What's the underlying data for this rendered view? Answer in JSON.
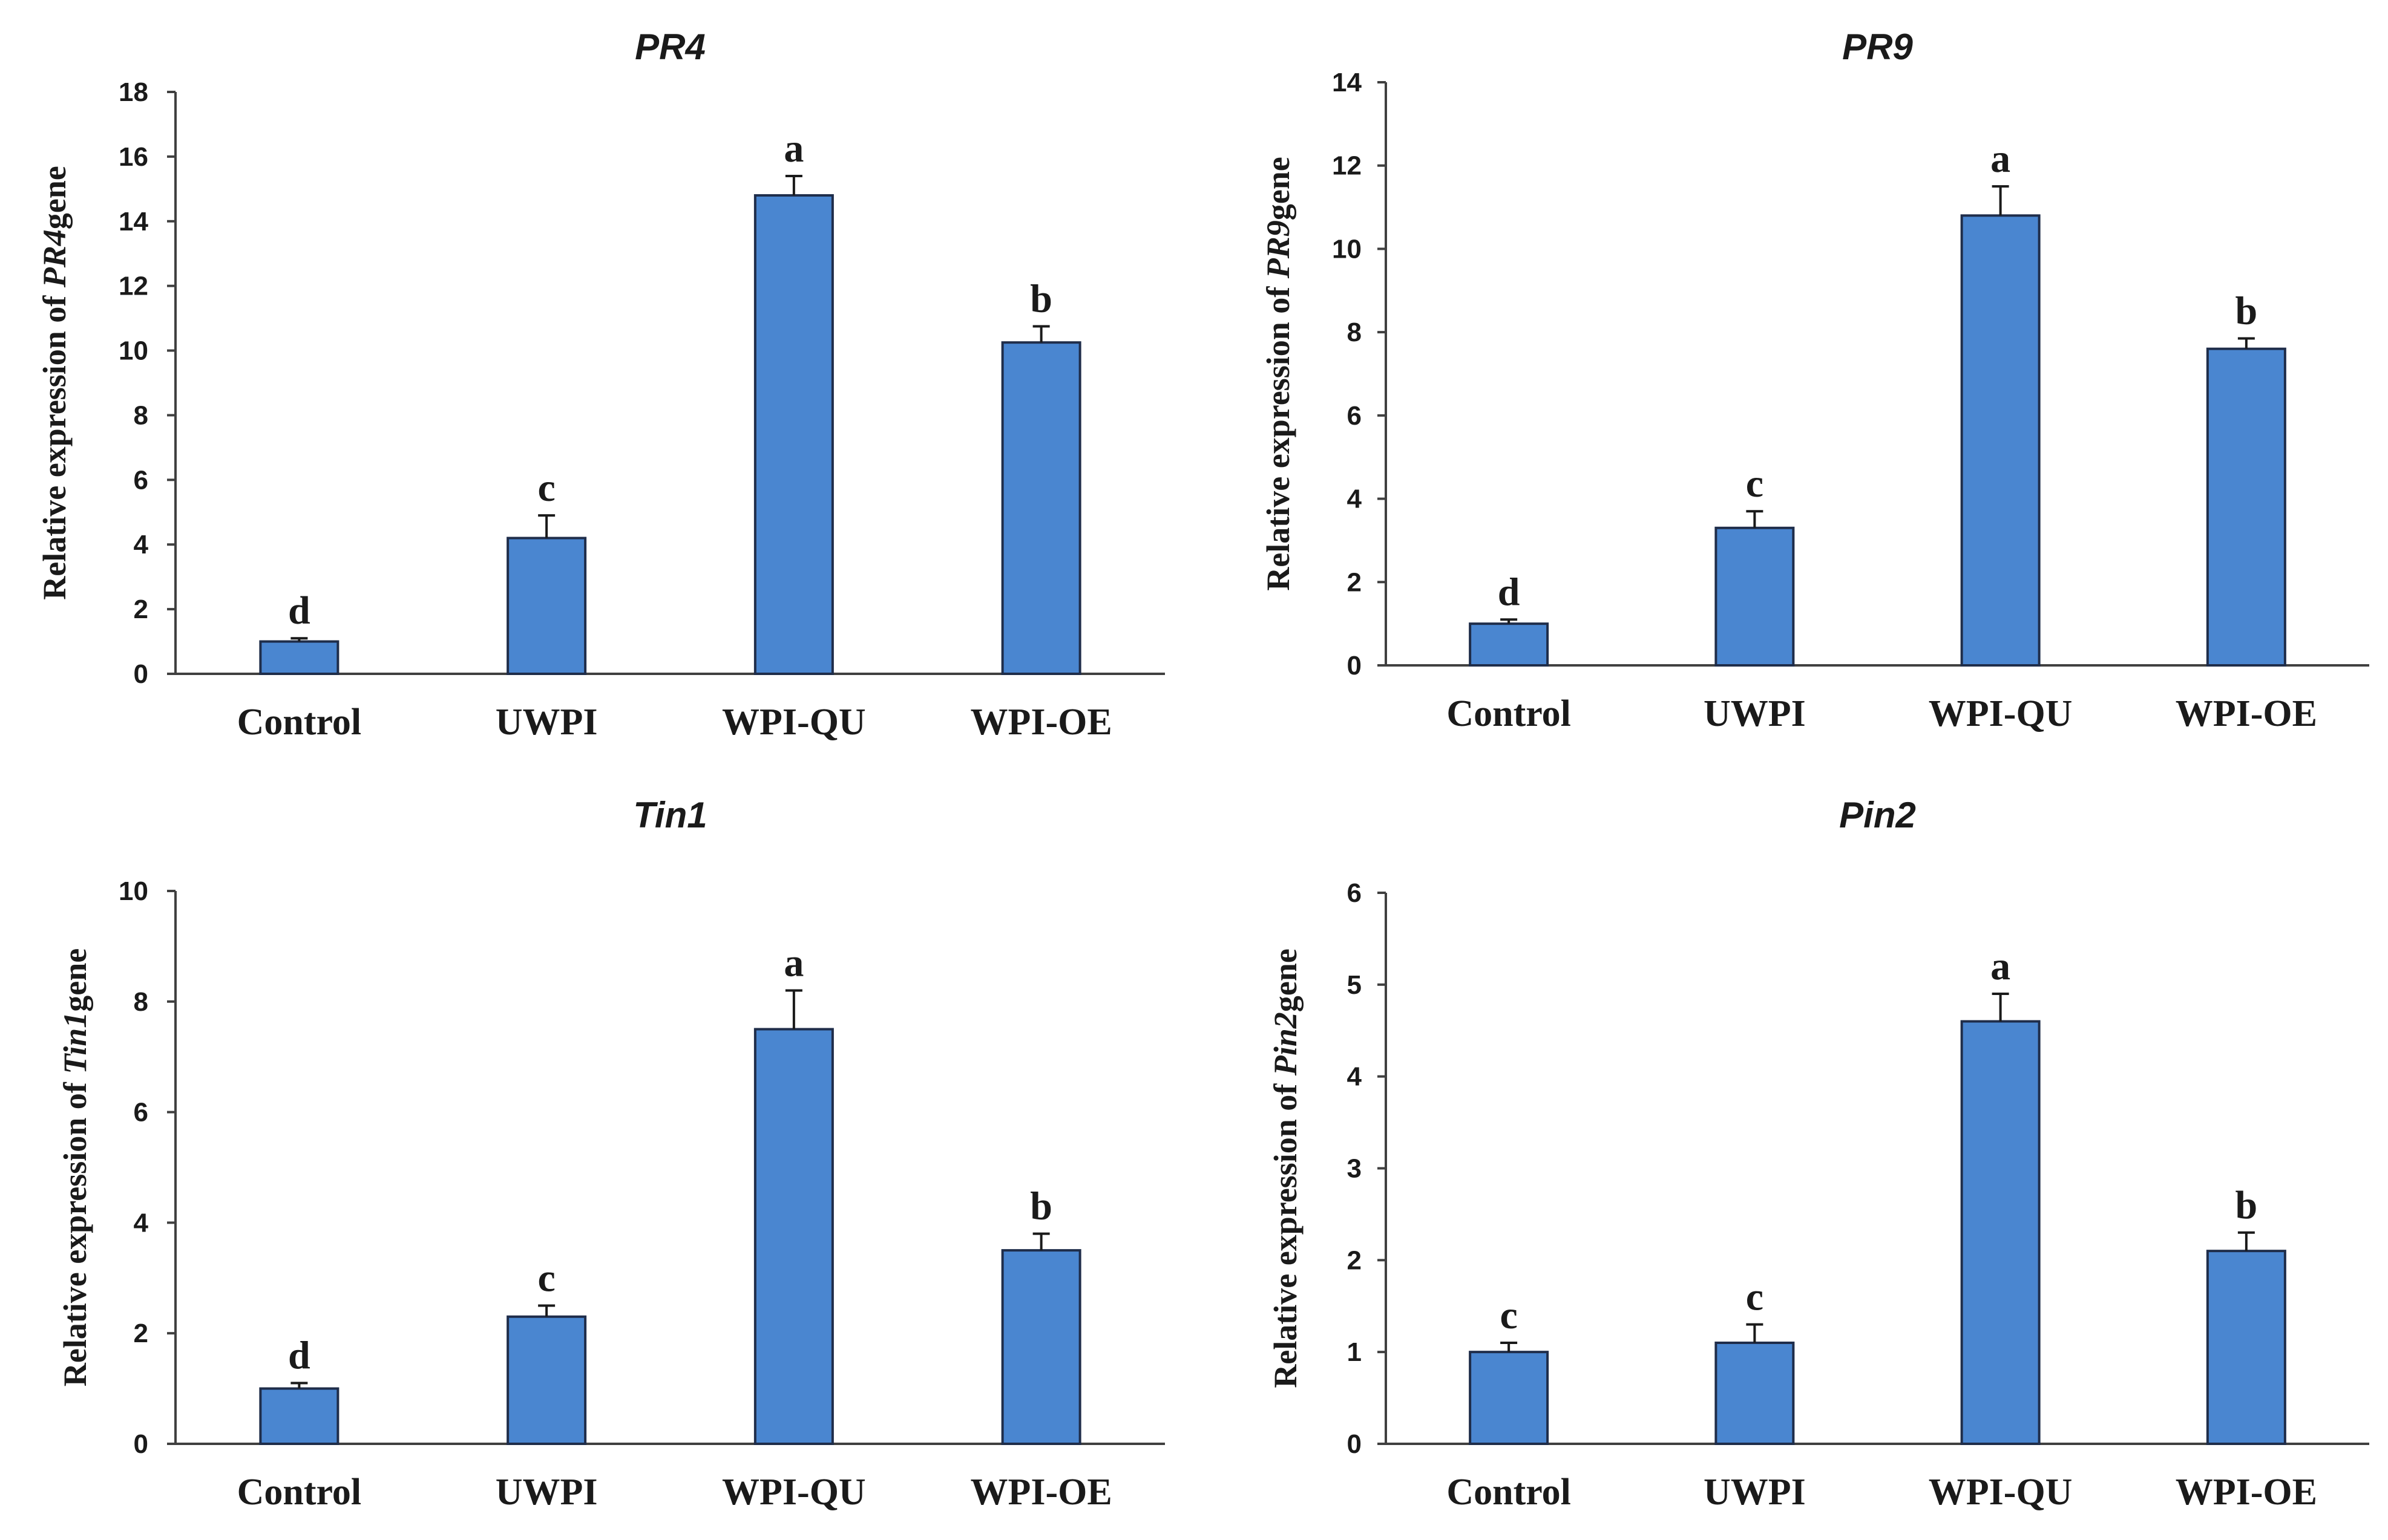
{
  "style": {
    "bar_color": "#4a86d0",
    "bar_edge": "#1f2d4a",
    "axis_color": "#404040",
    "text_color": "#1a1a1a"
  },
  "chart_data": [
    {
      "type": "bar",
      "title": "PR4",
      "ylabel_prefix": "Relative expression of",
      "ylabel_gene": "PR4",
      "ylabel_suffix": "gene",
      "categories": [
        "Control",
        "UWPI",
        "WPI-QU",
        "WPI-OE"
      ],
      "values": [
        1.0,
        4.2,
        14.8,
        10.25
      ],
      "errors": [
        0.1,
        0.7,
        0.6,
        0.5
      ],
      "significance": [
        "d",
        "c",
        "a",
        "b"
      ],
      "ylim": [
        0,
        18
      ],
      "yticks": [
        0,
        2,
        4,
        6,
        8,
        10,
        12,
        14,
        16,
        18
      ]
    },
    {
      "type": "bar",
      "title": "PR9",
      "ylabel_prefix": "Relative expression of",
      "ylabel_gene": "PR9",
      "ylabel_suffix": "gene",
      "categories": [
        "Control",
        "UWPI",
        "WPI-QU",
        "WPI-OE"
      ],
      "values": [
        1.0,
        3.3,
        10.8,
        7.6
      ],
      "errors": [
        0.1,
        0.4,
        0.7,
        0.25
      ],
      "significance": [
        "d",
        "c",
        "a",
        "b"
      ],
      "ylim": [
        0,
        14
      ],
      "yticks": [
        0,
        2,
        4,
        6,
        8,
        10,
        12,
        14
      ]
    },
    {
      "type": "bar",
      "title": "Tin1",
      "ylabel_prefix": "Relative expression of",
      "ylabel_gene": "Tin1",
      "ylabel_suffix": "gene",
      "categories": [
        "Control",
        "UWPI",
        "WPI-QU",
        "WPI-OE"
      ],
      "values": [
        1.0,
        2.3,
        7.5,
        3.5
      ],
      "errors": [
        0.1,
        0.2,
        0.7,
        0.3
      ],
      "significance": [
        "d",
        "c",
        "a",
        "b"
      ],
      "ylim": [
        0,
        10
      ],
      "yticks": [
        0,
        2,
        4,
        6,
        8,
        10
      ]
    },
    {
      "type": "bar",
      "title": "Pin2",
      "ylabel_prefix": "Relative expression of",
      "ylabel_gene": "Pin2",
      "ylabel_suffix": "gene",
      "categories": [
        "Control",
        "UWPI",
        "WPI-QU",
        "WPI-OE"
      ],
      "values": [
        1.0,
        1.1,
        4.6,
        2.1
      ],
      "errors": [
        0.1,
        0.2,
        0.3,
        0.2
      ],
      "significance": [
        "c",
        "c",
        "a",
        "b"
      ],
      "ylim": [
        0,
        6
      ],
      "yticks": [
        0,
        1,
        2,
        3,
        4,
        5,
        6
      ]
    }
  ]
}
